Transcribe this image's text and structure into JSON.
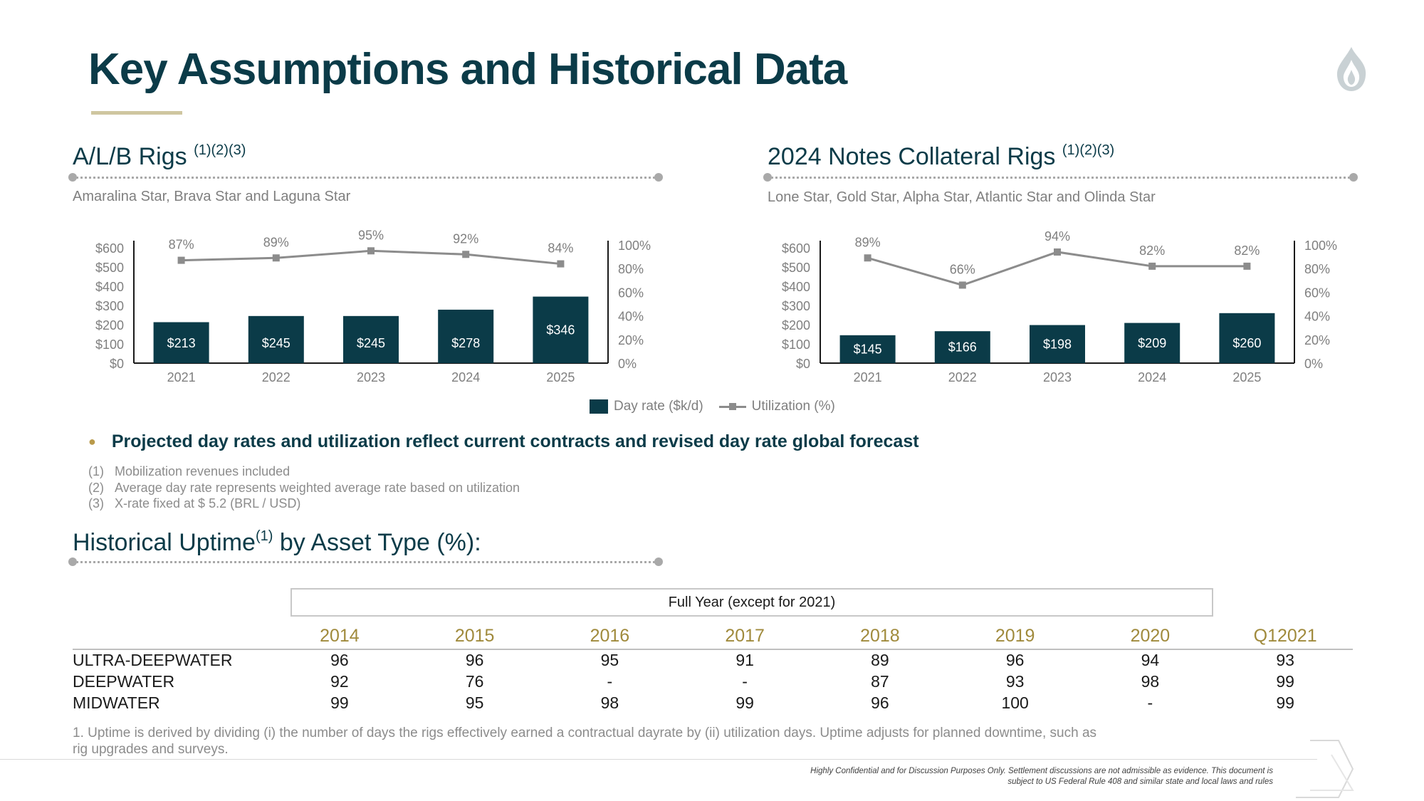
{
  "page": {
    "title": "Key Assumptions and Historical Data"
  },
  "sections": {
    "alb": {
      "title": "A/L/B Rigs",
      "title_sup": "(1)(2)(3)",
      "subtitle": "Amaralina Star, Brava Star and Laguna Star"
    },
    "notes": {
      "title": "2024 Notes Collateral Rigs",
      "title_sup": "(1)(2)(3)",
      "subtitle": "Lone Star, Gold Star, Alpha Star, Atlantic Star and Olinda Star"
    },
    "uptime": {
      "title_pre": "Historical Uptime",
      "title_sup": "(1)",
      "title_post": " by Asset Type (%):"
    }
  },
  "legend": {
    "bar_label": "Day rate ($k/d)",
    "line_label": "Utilization (%)"
  },
  "bullet": {
    "text": "Projected day rates and utilization reflect current contracts and revised day rate global forecast"
  },
  "footnotes": [
    {
      "num": "(1)",
      "text": "Mobilization revenues included"
    },
    {
      "num": "(2)",
      "text": "Average day rate represents weighted average rate based on utilization"
    },
    {
      "num": "(3)",
      "text": "X-rate fixed at $ 5.2 (BRL / USD)"
    }
  ],
  "chart_data": [
    {
      "type": "bar",
      "title": "A/L/B Rigs",
      "categories": [
        "2021",
        "2022",
        "2023",
        "2024",
        "2025"
      ],
      "series": [
        {
          "name": "Day rate ($k/d)",
          "type": "bar",
          "axis": "left",
          "values": [
            213,
            245,
            245,
            278,
            346
          ],
          "labels": [
            "$213",
            "$245",
            "$245",
            "$278",
            "$346"
          ],
          "color": "#0b3b48"
        },
        {
          "name": "Utilization (%)",
          "type": "line",
          "axis": "right",
          "values": [
            87,
            89,
            95,
            92,
            84
          ],
          "labels": [
            "87%",
            "89%",
            "95%",
            "92%",
            "84%"
          ],
          "color": "#8c8c8c"
        }
      ],
      "y_left": {
        "ticks": [
          "$0",
          "$100",
          "$200",
          "$300",
          "$400",
          "$500",
          "$600"
        ],
        "ylim": [
          0,
          600
        ]
      },
      "y_right": {
        "ticks": [
          "0%",
          "20%",
          "40%",
          "60%",
          "80%",
          "100%"
        ],
        "ylim": [
          0,
          100
        ]
      },
      "grid": false
    },
    {
      "type": "bar",
      "title": "2024 Notes Collateral Rigs",
      "categories": [
        "2021",
        "2022",
        "2023",
        "2024",
        "2025"
      ],
      "series": [
        {
          "name": "Day rate ($k/d)",
          "type": "bar",
          "axis": "left",
          "values": [
            145,
            166,
            198,
            209,
            260
          ],
          "labels": [
            "$145",
            "$166",
            "$198",
            "$209",
            "$260"
          ],
          "color": "#0b3b48"
        },
        {
          "name": "Utilization (%)",
          "type": "line",
          "axis": "right",
          "values": [
            89,
            66,
            94,
            82,
            82
          ],
          "labels": [
            "89%",
            "66%",
            "94%",
            "82%",
            "82%"
          ],
          "color": "#8c8c8c"
        }
      ],
      "y_left": {
        "ticks": [
          "$0",
          "$100",
          "$200",
          "$300",
          "$400",
          "$500",
          "$600"
        ],
        "ylim": [
          0,
          600
        ]
      },
      "y_right": {
        "ticks": [
          "0%",
          "20%",
          "40%",
          "60%",
          "80%",
          "100%"
        ],
        "ylim": [
          0,
          100
        ]
      },
      "grid": false
    }
  ],
  "uptime_table": {
    "group_header": "Full Year (except for 2021)",
    "columns": [
      "2014",
      "2015",
      "2016",
      "2017",
      "2018",
      "2019",
      "2020",
      "Q12021"
    ],
    "rows": [
      {
        "label": "ULTRA-DEEPWATER",
        "values": [
          "96",
          "96",
          "95",
          "91",
          "89",
          "96",
          "94",
          "93"
        ]
      },
      {
        "label": "DEEPWATER",
        "values": [
          "92",
          "76",
          "-",
          "-",
          "87",
          "93",
          "98",
          "99"
        ]
      },
      {
        "label": "MIDWATER",
        "values": [
          "99",
          "95",
          "98",
          "99",
          "96",
          "100",
          "-",
          "99"
        ]
      }
    ],
    "note": "1. Uptime is derived by dividing (i) the number of days the rigs effectively earned a contractual dayrate by (ii) utilization days. Uptime adjusts for planned downtime, such as rig upgrades and surveys."
  },
  "disclaimer": {
    "line1": "Highly Confidential and for Discussion Purposes Only. Settlement discussions are not admissible as evidence. This document is",
    "line2": "subject to US Federal Rule 408 and similar state and local laws and rules"
  },
  "colors": {
    "brand_navy": "#0b3b48",
    "accent_gold": "#a08a3c",
    "line_gray": "#8c8c8c",
    "text_gray": "#7f7f7f"
  }
}
